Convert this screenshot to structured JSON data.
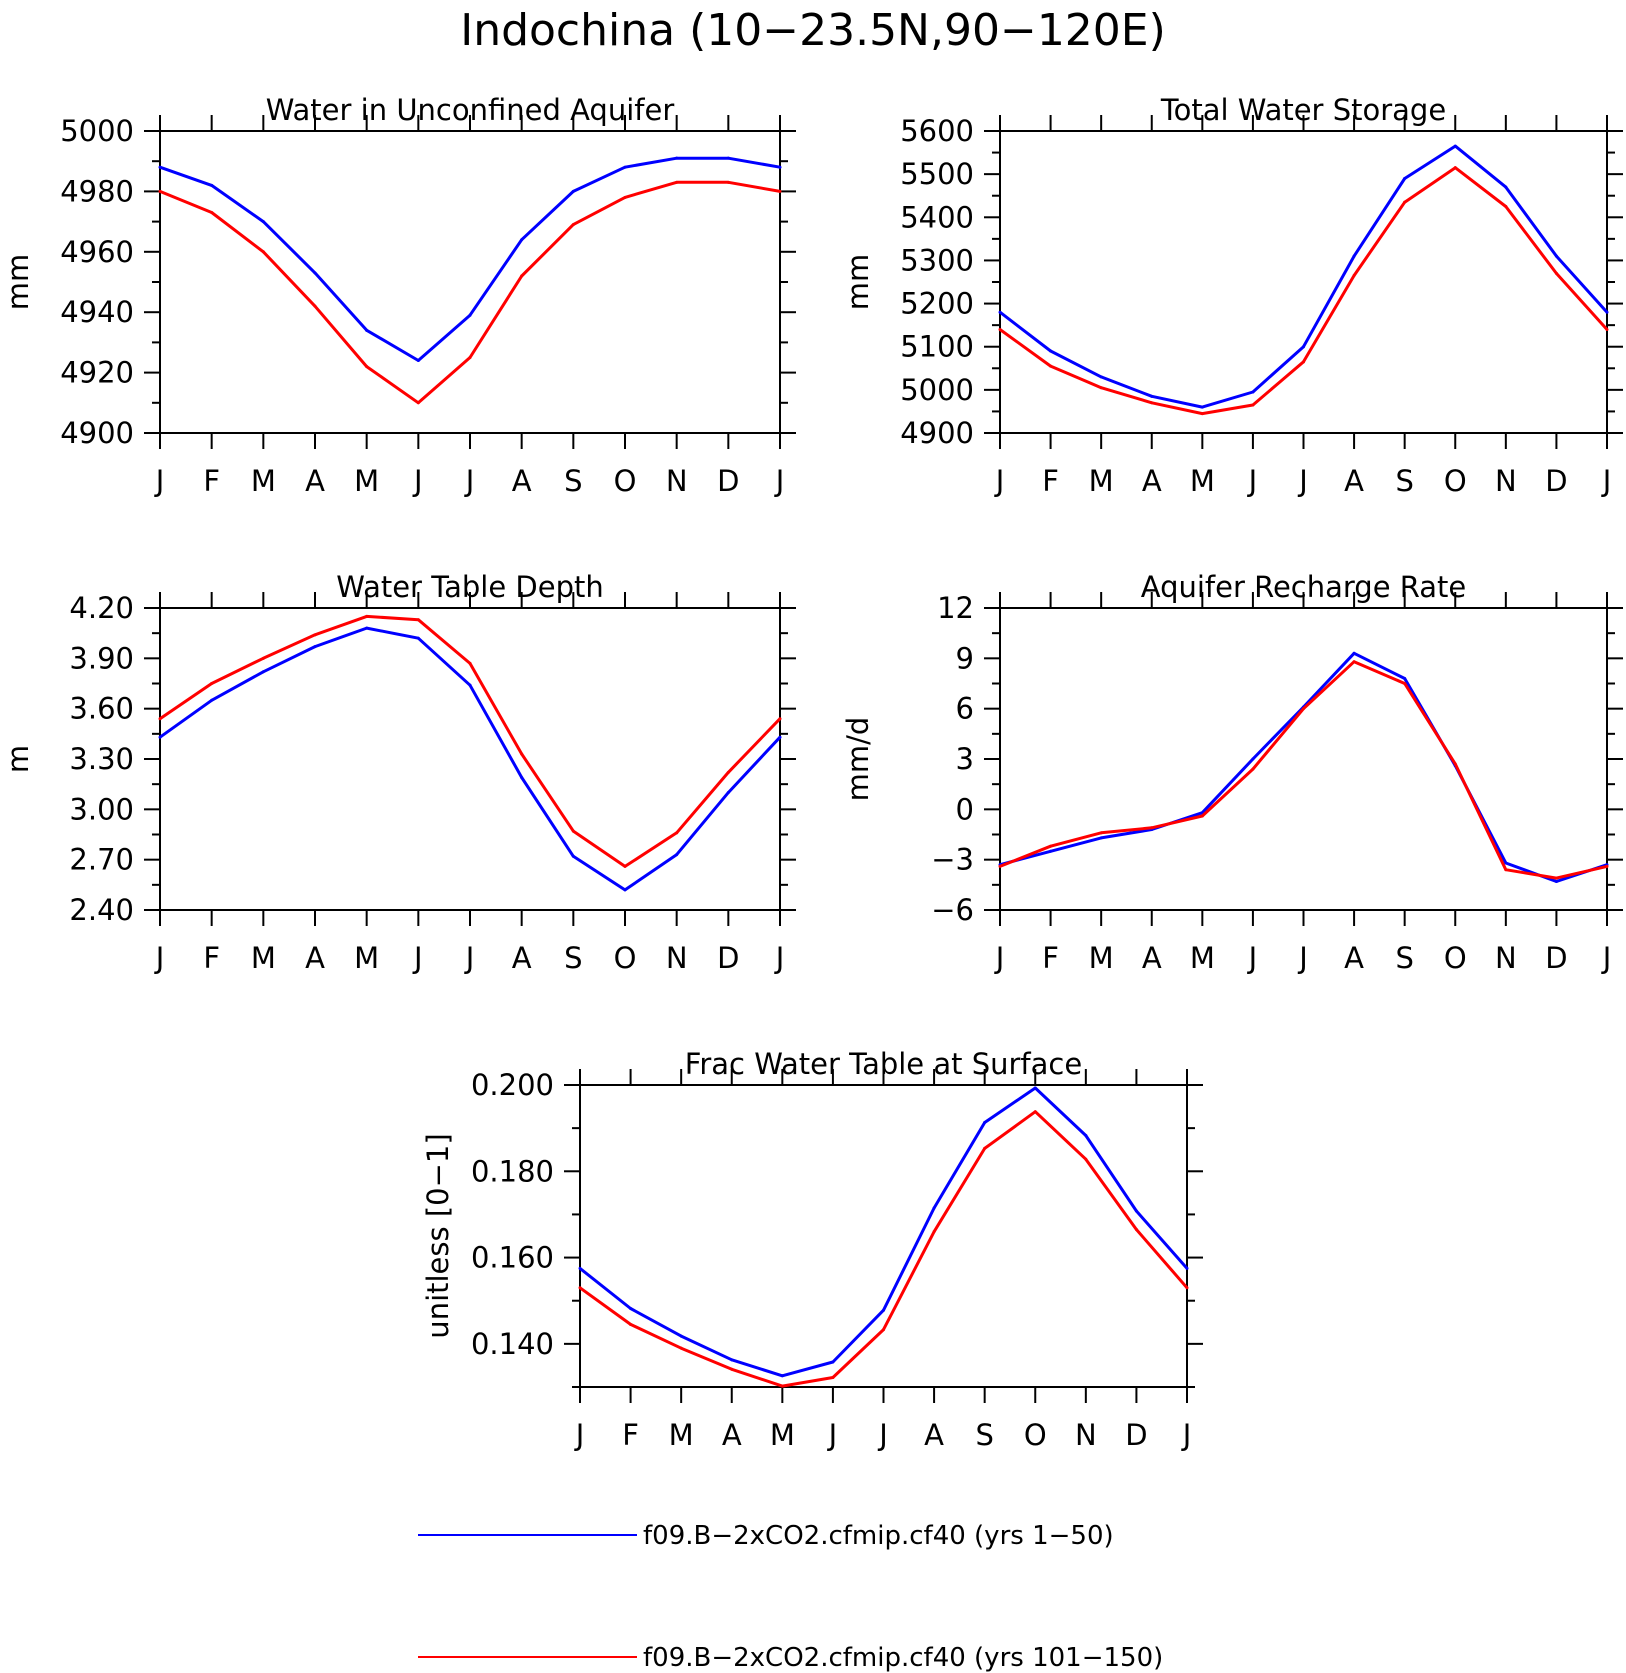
{
  "figure": {
    "title": "Indochina (10−23.5N,90−120E)"
  },
  "colors": {
    "series1": "#0000ff",
    "series2": "#ff0000",
    "axis": "#000000"
  },
  "legend": {
    "entries": [
      {
        "label": "f09.B−2xCO2.cfmip.cf40 (yrs 1−50)",
        "color": "#0000ff"
      },
      {
        "label": "f09.B−2xCO2.cfmip.cf40 (yrs 101−150)",
        "color": "#ff0000"
      }
    ]
  },
  "chart_data": [
    {
      "type": "line",
      "title": "Water in Unconfined Aquifer",
      "ylabel": "mm",
      "xlabel": "",
      "categories": [
        "J",
        "F",
        "M",
        "A",
        "M",
        "J",
        "J",
        "A",
        "S",
        "O",
        "N",
        "D",
        "J"
      ],
      "ylim": [
        4900,
        5000
      ],
      "yticks": [
        "4900",
        "4920",
        "4940",
        "4960",
        "4980",
        "5000"
      ],
      "grid": false,
      "series": [
        {
          "name": "f09.B−2xCO2.cfmip.cf40 (yrs 1−50)",
          "color": "#0000ff",
          "values": [
            4988,
            4982,
            4970,
            4953,
            4934,
            4924,
            4939,
            4964,
            4980,
            4988,
            4991,
            4991,
            4988
          ]
        },
        {
          "name": "f09.B−2xCO2.cfmip.cf40 (yrs 101−150)",
          "color": "#ff0000",
          "values": [
            4980,
            4973,
            4960,
            4942,
            4922,
            4910,
            4925,
            4952,
            4969,
            4978,
            4983,
            4983,
            4980
          ]
        }
      ]
    },
    {
      "type": "line",
      "title": "Total Water Storage",
      "ylabel": "mm",
      "xlabel": "",
      "categories": [
        "J",
        "F",
        "M",
        "A",
        "M",
        "J",
        "J",
        "A",
        "S",
        "O",
        "N",
        "D",
        "J"
      ],
      "ylim": [
        4900,
        5600
      ],
      "yticks": [
        "4900",
        "5000",
        "5100",
        "5200",
        "5300",
        "5400",
        "5500",
        "5600"
      ],
      "grid": false,
      "series": [
        {
          "name": "f09.B−2xCO2.cfmip.cf40 (yrs 1−50)",
          "color": "#0000ff",
          "values": [
            5180,
            5090,
            5030,
            4985,
            4960,
            4995,
            5100,
            5310,
            5490,
            5565,
            5470,
            5310,
            5180
          ]
        },
        {
          "name": "f09.B−2xCO2.cfmip.cf40 (yrs 101−150)",
          "color": "#ff0000",
          "values": [
            5140,
            5055,
            5005,
            4970,
            4945,
            4965,
            5065,
            5265,
            5435,
            5515,
            5425,
            5270,
            5140
          ]
        }
      ]
    },
    {
      "type": "line",
      "title": "Water Table Depth",
      "ylabel": "m",
      "xlabel": "",
      "categories": [
        "J",
        "F",
        "M",
        "A",
        "M",
        "J",
        "J",
        "A",
        "S",
        "O",
        "N",
        "D",
        "J"
      ],
      "ylim": [
        2.4,
        4.2
      ],
      "yticks": [
        "2.40",
        "2.70",
        "3.00",
        "3.30",
        "3.60",
        "3.90",
        "4.20"
      ],
      "grid": false,
      "series": [
        {
          "name": "f09.B−2xCO2.cfmip.cf40 (yrs 1−50)",
          "color": "#0000ff",
          "values": [
            3.43,
            3.65,
            3.82,
            3.97,
            4.08,
            4.02,
            3.74,
            3.19,
            2.72,
            2.52,
            2.73,
            3.1,
            3.43
          ]
        },
        {
          "name": "f09.B−2xCO2.cfmip.cf40 (yrs 101−150)",
          "color": "#ff0000",
          "values": [
            3.54,
            3.75,
            3.9,
            4.04,
            4.15,
            4.13,
            3.87,
            3.33,
            2.87,
            2.66,
            2.86,
            3.22,
            3.54
          ]
        }
      ]
    },
    {
      "type": "line",
      "title": "Aquifer Recharge Rate",
      "ylabel": "mm/d",
      "xlabel": "",
      "categories": [
        "J",
        "F",
        "M",
        "A",
        "M",
        "J",
        "J",
        "A",
        "S",
        "O",
        "N",
        "D",
        "J"
      ],
      "ylim": [
        -6,
        12
      ],
      "yticks": [
        "−6",
        "−3",
        "0",
        "3",
        "6",
        "9",
        "12"
      ],
      "grid": false,
      "series": [
        {
          "name": "f09.B−2xCO2.cfmip.cf40 (yrs 1−50)",
          "color": "#0000ff",
          "values": [
            -3.3,
            -2.5,
            -1.7,
            -1.2,
            -0.2,
            3.0,
            6.1,
            9.3,
            7.8,
            2.6,
            -3.2,
            -4.3,
            -3.3
          ]
        },
        {
          "name": "f09.B−2xCO2.cfmip.cf40 (yrs 101−150)",
          "color": "#ff0000",
          "values": [
            -3.4,
            -2.2,
            -1.4,
            -1.1,
            -0.4,
            2.4,
            6.0,
            8.8,
            7.5,
            2.7,
            -3.6,
            -4.1,
            -3.4
          ]
        }
      ]
    },
    {
      "type": "line",
      "title": "Frac Water Table at Surface",
      "ylabel": "unitless [0−1]",
      "xlabel": "",
      "categories": [
        "J",
        "F",
        "M",
        "A",
        "M",
        "J",
        "J",
        "A",
        "S",
        "O",
        "N",
        "D",
        "J"
      ],
      "ylim": [
        0.13,
        0.2
      ],
      "yticks": [
        "0.140",
        "0.160",
        "0.180",
        "0.200"
      ],
      "ytick_values": [
        0.14,
        0.16,
        0.18,
        0.2
      ],
      "grid": false,
      "series": [
        {
          "name": "f09.B−2xCO2.cfmip.cf40 (yrs 1−50)",
          "color": "#0000ff",
          "values": [
            0.1575,
            0.1482,
            0.1418,
            0.1363,
            0.1326,
            0.1358,
            0.1478,
            0.1715,
            0.1913,
            0.1993,
            0.1883,
            0.1708,
            0.1575
          ]
        },
        {
          "name": "f09.B−2xCO2.cfmip.cf40 (yrs 101−150)",
          "color": "#ff0000",
          "values": [
            0.153,
            0.1445,
            0.139,
            0.1341,
            0.1302,
            0.1322,
            0.1433,
            0.166,
            0.1853,
            0.1938,
            0.1828,
            0.1665,
            0.153
          ]
        }
      ]
    }
  ]
}
